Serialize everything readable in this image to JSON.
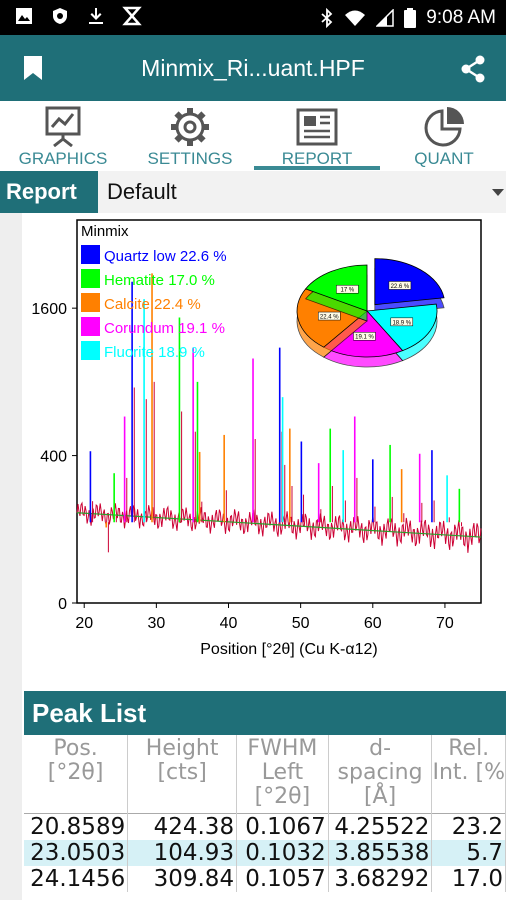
{
  "status_bar": {
    "time": "9:08 AM"
  },
  "app_bar": {
    "title": "Minmix_Ri...uant.HPF"
  },
  "tabs": [
    {
      "label": "GRAPHICS",
      "icon": "presentation-chart-icon"
    },
    {
      "label": "SETTINGS",
      "icon": "gear-icon"
    },
    {
      "label": "REPORT",
      "icon": "newspaper-icon"
    },
    {
      "label": "QUANT",
      "icon": "pie-chart-icon"
    }
  ],
  "selected_tab": "REPORT",
  "report_selector": {
    "label": "Report",
    "value": "Default"
  },
  "colors": {
    "accent": "#1f6f78",
    "tab_text": "#3a8a94",
    "quartz": "#0000ff",
    "hematite": "#00ff00",
    "calcite": "#ff8000",
    "corundum": "#ff00ff",
    "fluorite": "#00ffff",
    "row_alt": "#d6f1f6"
  },
  "chart_data": {
    "type": "line",
    "title": "Minmix",
    "xlabel": "Position [°2θ] (Cu K-α12)",
    "ylabel": "",
    "x_ticks": [
      20,
      30,
      40,
      50,
      60,
      70
    ],
    "y_tick_labels": [
      "0",
      "400",
      "1600"
    ],
    "y_tick_values": [
      0,
      400,
      1600
    ],
    "xlim": [
      19,
      75
    ],
    "y_scale": "sqrt",
    "ylim": [
      0,
      2700
    ],
    "legend_placement": "top-left",
    "legend": [
      {
        "label": "Quartz low 22.6 %",
        "color": "#0000ff"
      },
      {
        "label": "Hematite 17.0 %",
        "color": "#00ff00"
      },
      {
        "label": "Calcite 22.4 %",
        "color": "#ff8000"
      },
      {
        "label": "Corundum 19.1 %",
        "color": "#ff00ff"
      },
      {
        "label": "Fluorite 18.9 %",
        "color": "#00ffff"
      }
    ],
    "pie": {
      "type": "pie",
      "slices": [
        {
          "label": "22.6 %",
          "value": 22.6,
          "color": "#0000ff"
        },
        {
          "label": "18.9 %",
          "value": 18.9,
          "color": "#00ffff"
        },
        {
          "label": "19.1 %",
          "value": 19.1,
          "color": "#ff00ff"
        },
        {
          "label": "22.4 %",
          "value": 22.4,
          "color": "#ff8000"
        },
        {
          "label": "17 %",
          "value": 17.0,
          "color": "#00ff00"
        }
      ]
    },
    "peaks": [
      {
        "x": 20.86,
        "y": 424,
        "color": "#0000ff"
      },
      {
        "x": 23.05,
        "y": 105,
        "color": "#ff8000"
      },
      {
        "x": 24.15,
        "y": 310,
        "color": "#00ff00"
      },
      {
        "x": 25.6,
        "y": 640,
        "color": "#ff00ff"
      },
      {
        "x": 26.64,
        "y": 1900,
        "color": "#0000ff"
      },
      {
        "x": 28.3,
        "y": 1700,
        "color": "#00ffff"
      },
      {
        "x": 29.4,
        "y": 2000,
        "color": "#ff8000"
      },
      {
        "x": 33.2,
        "y": 1500,
        "color": "#00ff00"
      },
      {
        "x": 35.1,
        "y": 1200,
        "color": "#ff00ff"
      },
      {
        "x": 35.7,
        "y": 900,
        "color": "#00ff00"
      },
      {
        "x": 36.0,
        "y": 420,
        "color": "#ff8000"
      },
      {
        "x": 39.4,
        "y": 520,
        "color": "#ff8000"
      },
      {
        "x": 43.4,
        "y": 1100,
        "color": "#ff00ff"
      },
      {
        "x": 47.1,
        "y": 1200,
        "color": "#0000ff"
      },
      {
        "x": 47.5,
        "y": 780,
        "color": "#00ffff"
      },
      {
        "x": 48.5,
        "y": 560,
        "color": "#ff8000"
      },
      {
        "x": 50.1,
        "y": 480,
        "color": "#0000ff"
      },
      {
        "x": 52.5,
        "y": 360,
        "color": "#ff00ff"
      },
      {
        "x": 54.1,
        "y": 560,
        "color": "#00ff00"
      },
      {
        "x": 55.9,
        "y": 430,
        "color": "#00ffff"
      },
      {
        "x": 57.5,
        "y": 640,
        "color": "#ff00ff"
      },
      {
        "x": 60.0,
        "y": 380,
        "color": "#0000ff"
      },
      {
        "x": 62.4,
        "y": 460,
        "color": "#00ff00"
      },
      {
        "x": 64.0,
        "y": 330,
        "color": "#ff8000"
      },
      {
        "x": 66.5,
        "y": 410,
        "color": "#ff00ff"
      },
      {
        "x": 68.2,
        "y": 430,
        "color": "#0000ff"
      },
      {
        "x": 70.3,
        "y": 300,
        "color": "#00ffff"
      },
      {
        "x": 72.0,
        "y": 240,
        "color": "#00ff00"
      }
    ]
  },
  "peak_list": {
    "title": "Peak List",
    "columns": [
      {
        "line1": "Pos.",
        "line2": "[°2θ]",
        "line3": ""
      },
      {
        "line1": "Height",
        "line2": "[cts]",
        "line3": ""
      },
      {
        "line1": "FWHM",
        "line2": "Left",
        "line3": "[°2θ]"
      },
      {
        "line1": "d-",
        "line2": "spacing",
        "line3": "[Å]"
      },
      {
        "line1": "Rel.",
        "line2": "Int. [%",
        "line3": ""
      }
    ],
    "rows": [
      [
        "20.8589",
        "424.38",
        "0.1067",
        "4.25522",
        "23.2"
      ],
      [
        "23.0503",
        "104.93",
        "0.1032",
        "3.85538",
        "5.7"
      ],
      [
        "24.1456",
        "309.84",
        "0.1057",
        "3.68292",
        "17.0"
      ]
    ]
  }
}
